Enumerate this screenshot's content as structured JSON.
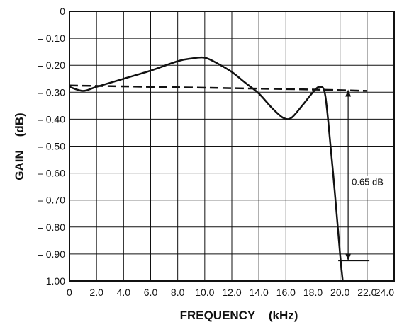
{
  "chart_data": {
    "type": "line",
    "title": "",
    "xlabel": "FREQUENCY    (kHz)",
    "ylabel": "GAIN    (dB)",
    "xlim": [
      0,
      24
    ],
    "ylim": [
      -1.0,
      0
    ],
    "grid": true,
    "x_ticks": [
      {
        "value": 0,
        "label": "0"
      },
      {
        "value": 2,
        "label": "2.0"
      },
      {
        "value": 4,
        "label": "4.0"
      },
      {
        "value": 6,
        "label": "6.0"
      },
      {
        "value": 8,
        "label": "8.0"
      },
      {
        "value": 10,
        "label": "10.0"
      },
      {
        "value": 12,
        "label": "12.0"
      },
      {
        "value": 14,
        "label": "14.0"
      },
      {
        "value": 16,
        "label": "16.0"
      },
      {
        "value": 18,
        "label": "18.0"
      },
      {
        "value": 20,
        "label": "20.0"
      },
      {
        "value": 22,
        "label": "22.0"
      },
      {
        "value": 24,
        "label": "24.0"
      }
    ],
    "y_ticks": [
      {
        "value": 0,
        "label": "0"
      },
      {
        "value": -0.1,
        "label": "– 0.10"
      },
      {
        "value": -0.2,
        "label": "– 0.20"
      },
      {
        "value": -0.3,
        "label": "– 0.30"
      },
      {
        "value": -0.4,
        "label": "– 0.40"
      },
      {
        "value": -0.5,
        "label": "– 0.50"
      },
      {
        "value": -0.6,
        "label": "– 0.60"
      },
      {
        "value": -0.7,
        "label": "– 0.70"
      },
      {
        "value": -0.8,
        "label": "– 0.80"
      },
      {
        "value": -0.9,
        "label": "– 0.90"
      },
      {
        "value": -1.0,
        "label": "– 1.00"
      }
    ],
    "series": [
      {
        "style": "solid",
        "color": "#111111",
        "points": [
          [
            0,
            -0.28
          ],
          [
            1,
            -0.295
          ],
          [
            2,
            -0.28
          ],
          [
            4,
            -0.25
          ],
          [
            6,
            -0.22
          ],
          [
            8,
            -0.185
          ],
          [
            9,
            -0.175
          ],
          [
            10,
            -0.172
          ],
          [
            11,
            -0.195
          ],
          [
            12,
            -0.225
          ],
          [
            13,
            -0.265
          ],
          [
            14,
            -0.305
          ],
          [
            15,
            -0.36
          ],
          [
            15.8,
            -0.395
          ],
          [
            16.4,
            -0.395
          ],
          [
            17.2,
            -0.35
          ],
          [
            18,
            -0.3
          ],
          [
            18.5,
            -0.28
          ],
          [
            18.9,
            -0.31
          ],
          [
            19.3,
            -0.5
          ],
          [
            19.7,
            -0.72
          ],
          [
            20.0,
            -0.9
          ],
          [
            20.2,
            -1.0
          ]
        ]
      },
      {
        "style": "dashed",
        "color": "#111111",
        "points": [
          [
            0,
            -0.275
          ],
          [
            6,
            -0.28
          ],
          [
            12,
            -0.285
          ],
          [
            18,
            -0.29
          ],
          [
            22,
            -0.295
          ]
        ]
      }
    ],
    "annotations": [
      {
        "label": "0.65 dB",
        "x": 20.6,
        "y_top": -0.29,
        "y_bottom": -0.925
      }
    ]
  }
}
